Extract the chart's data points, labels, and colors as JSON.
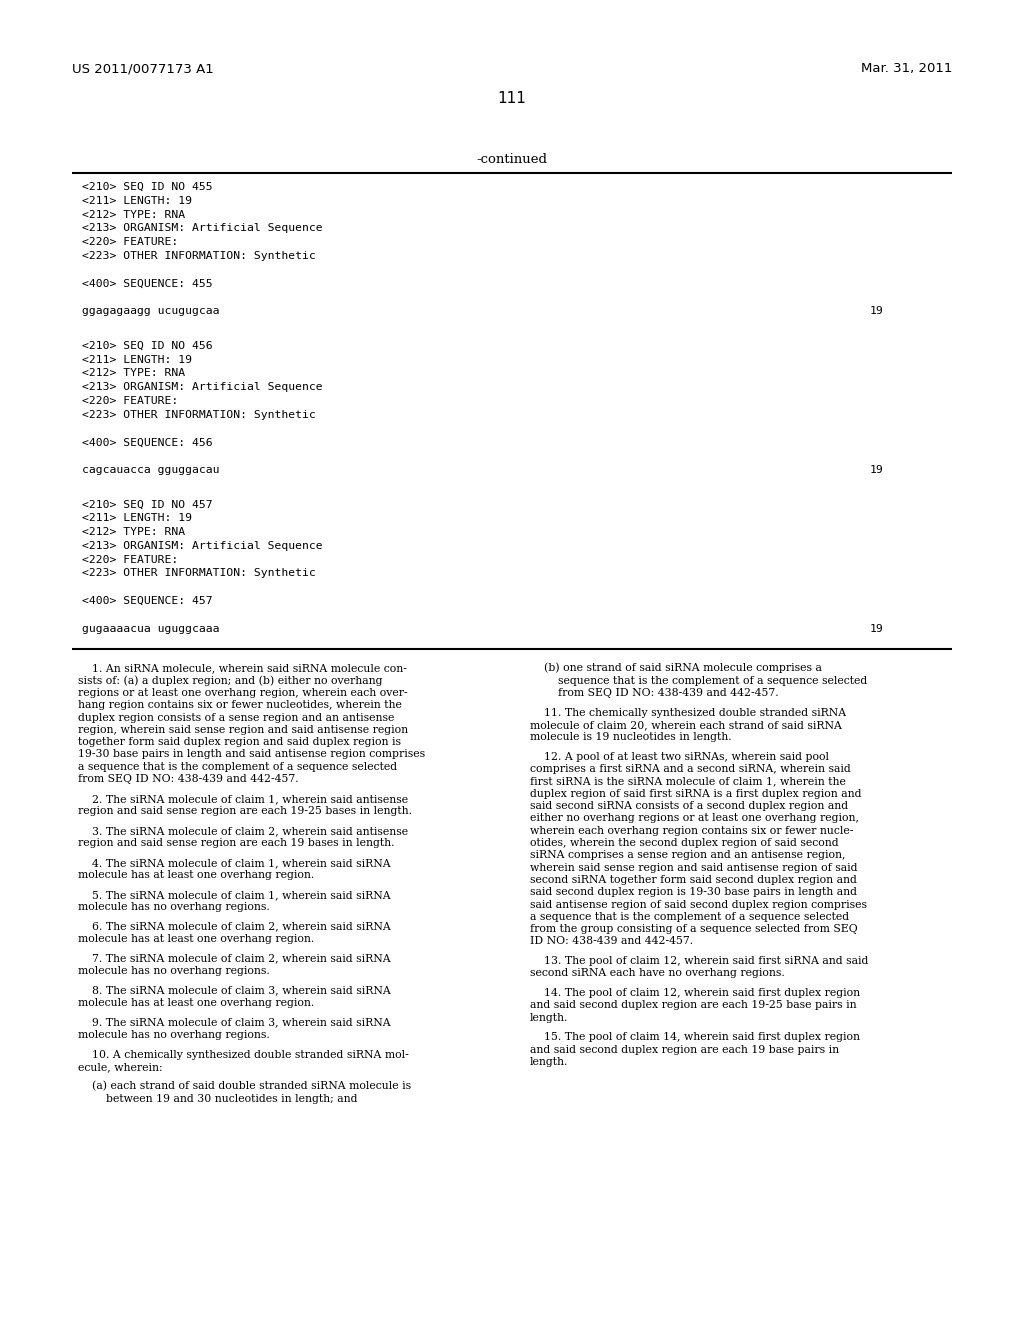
{
  "background_color": "#ffffff",
  "header_left": "US 2011/0077173 A1",
  "header_right": "Mar. 31, 2011",
  "page_number": "111",
  "continued_label": "-continued",
  "seq_blocks": [
    {
      "lines": [
        "<210> SEQ ID NO 455",
        "<211> LENGTH: 19",
        "<212> TYPE: RNA",
        "<213> ORGANISM: Artificial Sequence",
        "<220> FEATURE:",
        "<223> OTHER INFORMATION: Synthetic",
        "",
        "<400> SEQUENCE: 455",
        ""
      ],
      "seq_line": "ggagagaagg ucugugcaa",
      "seq_num": "19"
    },
    {
      "lines": [
        "<210> SEQ ID NO 456",
        "<211> LENGTH: 19",
        "<212> TYPE: RNA",
        "<213> ORGANISM: Artificial Sequence",
        "<220> FEATURE:",
        "<223> OTHER INFORMATION: Synthetic",
        "",
        "<400> SEQUENCE: 456",
        ""
      ],
      "seq_line": "cagcauacca gguggacau",
      "seq_num": "19"
    },
    {
      "lines": [
        "<210> SEQ ID NO 457",
        "<211> LENGTH: 19",
        "<212> TYPE: RNA",
        "<213> ORGANISM: Artificial Sequence",
        "<220> FEATURE:",
        "<223> OTHER INFORMATION: Synthetic",
        "",
        "<400> SEQUENCE: 457",
        ""
      ],
      "seq_line": "gugaaaacua uguggcaaa",
      "seq_num": "19"
    }
  ],
  "claims_left": [
    "    1. An siRNA molecule, wherein said siRNA molecule con-",
    "sists of: (a) a duplex region; and (b) either no overhang",
    "regions or at least one overhang region, wherein each over-",
    "hang region contains six or fewer nucleotides, wherein the",
    "duplex region consists of a sense region and an antisense",
    "region, wherein said sense region and said antisense region",
    "together form said duplex region and said duplex region is",
    "19-30 base pairs in length and said antisense region comprises",
    "a sequence that is the complement of a sequence selected",
    "from SEQ ID NO: 438-439 and 442-457.",
    "",
    "    2. The siRNA molecule of claim 1, wherein said antisense",
    "region and said sense region are each 19-25 bases in length.",
    "",
    "    3. The siRNA molecule of claim 2, wherein said antisense",
    "region and said sense region are each 19 bases in length.",
    "",
    "    4. The siRNA molecule of claim 1, wherein said siRNA",
    "molecule has at least one overhang region.",
    "",
    "    5. The siRNA molecule of claim 1, wherein said siRNA",
    "molecule has no overhang regions.",
    "",
    "    6. The siRNA molecule of claim 2, wherein said siRNA",
    "molecule has at least one overhang region.",
    "",
    "    7. The siRNA molecule of claim 2, wherein said siRNA",
    "molecule has no overhang regions.",
    "",
    "    8. The siRNA molecule of claim 3, wherein said siRNA",
    "molecule has at least one overhang region.",
    "",
    "    9. The siRNA molecule of claim 3, wherein said siRNA",
    "molecule has no overhang regions.",
    "",
    "    10. A chemically synthesized double stranded siRNA mol-",
    "ecule, wherein:",
    "",
    "    (a) each strand of said double stranded siRNA molecule is",
    "        between 19 and 30 nucleotides in length; and"
  ],
  "claims_right": [
    "    (b) one strand of said siRNA molecule comprises a",
    "        sequence that is the complement of a sequence selected",
    "        from SEQ ID NO: 438-439 and 442-457.",
    "",
    "    11. The chemically synthesized double stranded siRNA",
    "molecule of claim 20, wherein each strand of said siRNA",
    "molecule is 19 nucleotides in length.",
    "",
    "    12. A pool of at least two siRNAs, wherein said pool",
    "comprises a first siRNA and a second siRNA, wherein said",
    "first siRNA is the siRNA molecule of claim 1, wherein the",
    "duplex region of said first siRNA is a first duplex region and",
    "said second siRNA consists of a second duplex region and",
    "either no overhang regions or at least one overhang region,",
    "wherein each overhang region contains six or fewer nucle-",
    "otides, wherein the second duplex region of said second",
    "siRNA comprises a sense region and an antisense region,",
    "wherein said sense region and said antisense region of said",
    "second siRNA together form said second duplex region and",
    "said second duplex region is 19-30 base pairs in length and",
    "said antisense region of said second duplex region comprises",
    "a sequence that is the complement of a sequence selected",
    "from the group consisting of a sequence selected from SEQ",
    "ID NO: 438-439 and 442-457.",
    "",
    "    13. The pool of claim 12, wherein said first siRNA and said",
    "second siRNA each have no overhang regions.",
    "",
    "    14. The pool of claim 12, wherein said first duplex region",
    "and said second duplex region are each 19-25 base pairs in",
    "length.",
    "",
    "    15. The pool of claim 14, wherein said first duplex region",
    "and said second duplex region are each 19 base pairs in",
    "length."
  ]
}
